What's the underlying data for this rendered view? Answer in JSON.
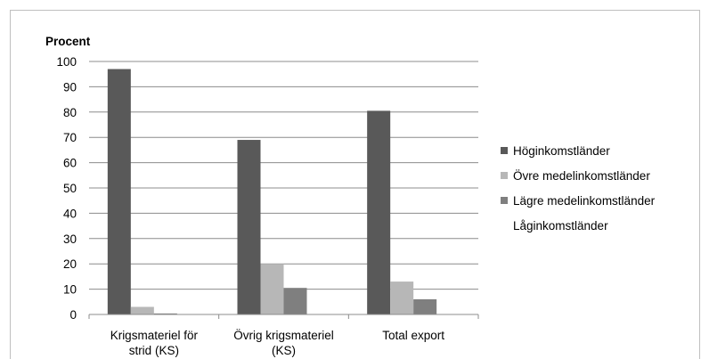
{
  "chart_data": {
    "type": "bar",
    "ylabel": "Procent",
    "ylim": [
      0,
      100
    ],
    "yticks": [
      0,
      10,
      20,
      30,
      40,
      50,
      60,
      70,
      80,
      90,
      100
    ],
    "categories": [
      [
        "Krigsmateriel för",
        "strid (KS)"
      ],
      [
        "Övrig krigsmateriel",
        "(KS)"
      ],
      [
        "Total export"
      ]
    ],
    "series": [
      {
        "name": "Höginkomstländer",
        "color": "#595959",
        "values": [
          97,
          69,
          80.5
        ]
      },
      {
        "name": "Övre medelinkomstländer",
        "color": "#b7b7b7",
        "values": [
          3,
          20,
          13
        ]
      },
      {
        "name": "Lägre medelinkomstländer",
        "color": "#7f7f7f",
        "values": [
          0.4,
          10.5,
          6
        ]
      },
      {
        "name": "Låginkomstländer",
        "color": "#ffffff",
        "values": [
          0,
          0,
          0
        ]
      }
    ],
    "grid": true,
    "legend": "right"
  }
}
